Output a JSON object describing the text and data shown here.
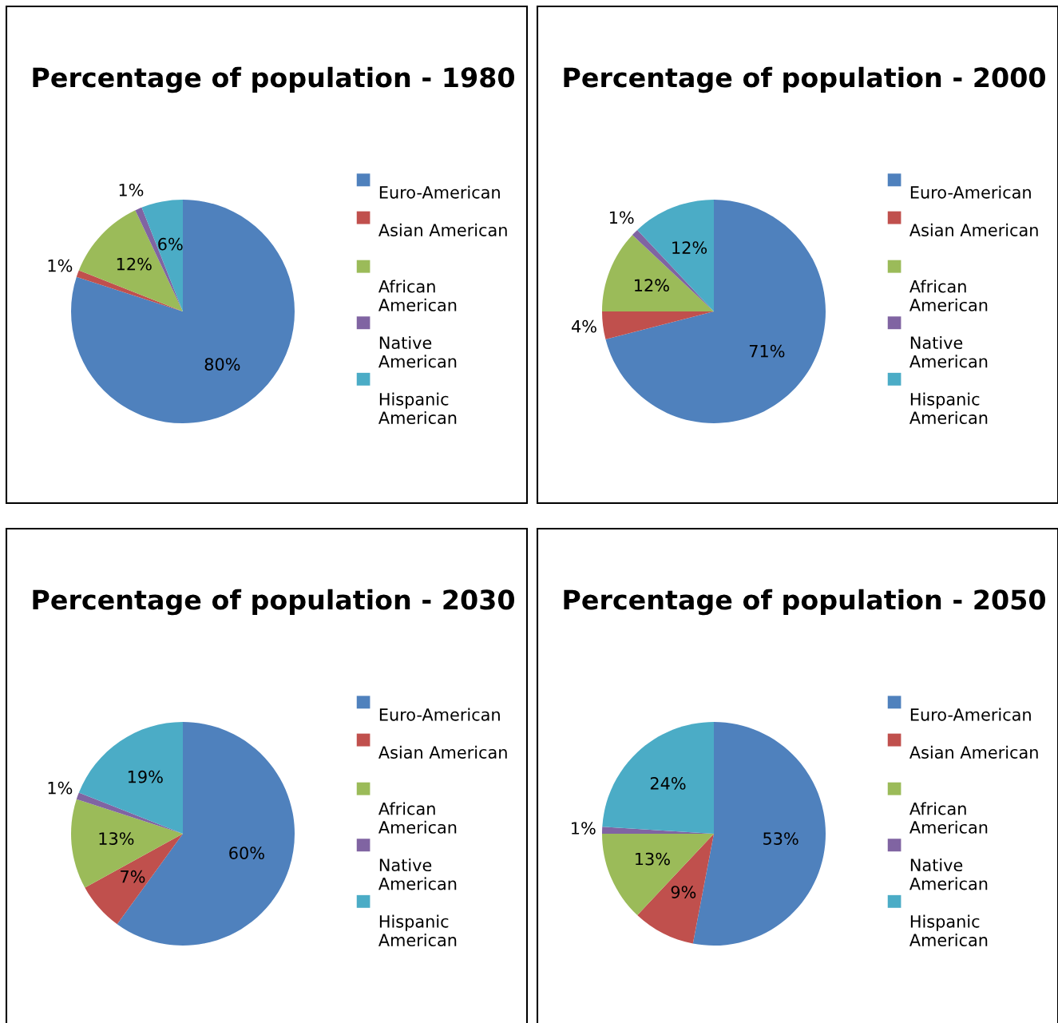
{
  "chart_data": [
    {
      "type": "pie",
      "title": "Percentage of population - 1980",
      "categories": [
        "Euro-American",
        "Asian American",
        "African American",
        "Native American",
        "Hispanic American"
      ],
      "values": [
        80,
        1,
        12,
        1,
        6
      ],
      "value_labels": [
        "80%",
        "1%",
        "12%",
        "1%",
        "6%"
      ],
      "colors": [
        "#4f81bd",
        "#c0504d",
        "#9bbb59",
        "#8064a2",
        "#4bacc6"
      ],
      "legend": "right"
    },
    {
      "type": "pie",
      "title": "Percentage of population - 2000",
      "categories": [
        "Euro-American",
        "Asian American",
        "African American",
        "Native American",
        "Hispanic American"
      ],
      "values": [
        71,
        4,
        12,
        1,
        12
      ],
      "value_labels": [
        "71%",
        "4%",
        "12%",
        "1%",
        "12%"
      ],
      "colors": [
        "#4f81bd",
        "#c0504d",
        "#9bbb59",
        "#8064a2",
        "#4bacc6"
      ],
      "legend": "right"
    },
    {
      "type": "pie",
      "title": "Percentage of population - 2030",
      "categories": [
        "Euro-American",
        "Asian American",
        "African American",
        "Native American",
        "Hispanic American"
      ],
      "values": [
        60,
        7,
        13,
        1,
        19
      ],
      "value_labels": [
        "60%",
        "7%",
        "13%",
        "1%",
        "19%"
      ],
      "colors": [
        "#4f81bd",
        "#c0504d",
        "#9bbb59",
        "#8064a2",
        "#4bacc6"
      ],
      "legend": "right"
    },
    {
      "type": "pie",
      "title": "Percentage of population - 2050",
      "categories": [
        "Euro-American",
        "Asian American",
        "African American",
        "Native American",
        "Hispanic American"
      ],
      "values": [
        53,
        9,
        13,
        1,
        24
      ],
      "value_labels": [
        "53%",
        "9%",
        "13%",
        "1%",
        "24%"
      ],
      "colors": [
        "#4f81bd",
        "#c0504d",
        "#9bbb59",
        "#8064a2",
        "#4bacc6"
      ],
      "legend": "right"
    }
  ]
}
